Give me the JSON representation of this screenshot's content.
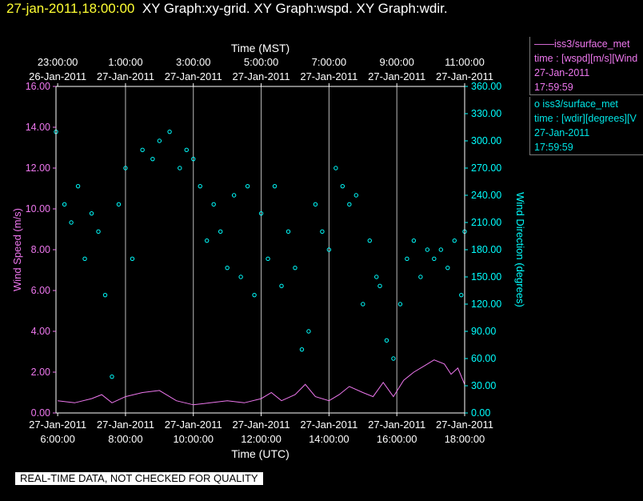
{
  "header": {
    "timestamp": "27-jan-2011,18:00:00",
    "graphs": "XY Graph:xy-grid.  XY Graph:wspd.  XY Graph:wdir."
  },
  "legend": {
    "wspd": {
      "line1": "——iss3/surface_met",
      "line2": "time : [wspd][m/s][Wind",
      "line3": "27-Jan-2011",
      "line4": "17:59:59"
    },
    "wdir": {
      "line1": "o  iss3/surface_met",
      "line2": "time : [wdir][degrees][V",
      "line3": "27-Jan-2011",
      "line4": "17:59:59"
    }
  },
  "notice": "REAL-TIME DATA, NOT CHECKED FOR QUALITY",
  "colors": {
    "wspd": "#ee77ee",
    "wdir": "#00ffff",
    "timestamp": "#ffff33",
    "frame": "#ffffff"
  },
  "chart_data": {
    "type": "line",
    "top_axis": {
      "label": "Time (MST)",
      "times": [
        "23:00:00",
        "1:00:00",
        "3:00:00",
        "5:00:00",
        "7:00:00",
        "9:00:00",
        "11:00:00"
      ],
      "dates": [
        "26-Jan-2011",
        "27-Jan-2011",
        "27-Jan-2011",
        "27-Jan-2011",
        "27-Jan-2011",
        "27-Jan-2011",
        "27-Jan-2011"
      ]
    },
    "bottom_axis": {
      "label": "Time (UTC)",
      "times": [
        "6:00:00",
        "8:00:00",
        "10:00:00",
        "12:00:00",
        "14:00:00",
        "16:00:00",
        "18:00:00"
      ],
      "dates": [
        "27-Jan-2011",
        "27-Jan-2011",
        "27-Jan-2011",
        "27-Jan-2011",
        "27-Jan-2011",
        "27-Jan-2011",
        "27-Jan-2011"
      ]
    },
    "xlim_utc_hours": [
      5.95,
      18.0
    ],
    "left_axis": {
      "label": "Wind Speed (m/s)",
      "ylim": [
        0,
        16
      ],
      "ticks": [
        "0.00",
        "2.00",
        "4.00",
        "6.00",
        "8.00",
        "10.00",
        "12.00",
        "14.00",
        "16.00"
      ]
    },
    "right_axis": {
      "label": "Wind Direction (degrees)",
      "ylim": [
        0,
        360
      ],
      "ticks": [
        "0.00",
        "30.00",
        "60.00",
        "90.00",
        "120.00",
        "150.00",
        "180.00",
        "210.00",
        "240.00",
        "270.00",
        "300.00",
        "330.00",
        "360.00"
      ]
    },
    "vertical_grid_utc_hours": [
      8,
      10,
      12,
      14,
      16,
      18
    ],
    "series": [
      {
        "name": "iss3/surface_met time : [wspd][m/s]",
        "axis": "left",
        "style": "line",
        "x_utc_hours": [
          6.0,
          6.5,
          7.0,
          7.3,
          7.6,
          8.0,
          8.5,
          9.0,
          9.5,
          10.0,
          10.5,
          11.0,
          11.5,
          12.0,
          12.3,
          12.6,
          13.0,
          13.3,
          13.6,
          14.0,
          14.3,
          14.6,
          15.0,
          15.3,
          15.6,
          15.9,
          16.2,
          16.5,
          16.8,
          17.1,
          17.4,
          17.6,
          17.8,
          18.0
        ],
        "y": [
          0.6,
          0.5,
          0.7,
          0.9,
          0.5,
          0.8,
          1.0,
          1.1,
          0.6,
          0.4,
          0.5,
          0.6,
          0.5,
          0.7,
          1.0,
          0.6,
          0.9,
          1.4,
          0.8,
          0.6,
          0.9,
          1.3,
          1.0,
          0.8,
          1.5,
          0.8,
          1.6,
          2.0,
          2.3,
          2.6,
          2.4,
          1.9,
          2.2,
          1.4
        ]
      },
      {
        "name": "iss3/surface_met time : [wdir][degrees]",
        "axis": "right",
        "style": "markers",
        "x_utc_hours": [
          5.95,
          6.2,
          6.4,
          6.6,
          6.8,
          7.0,
          7.2,
          7.4,
          7.6,
          7.8,
          8.0,
          8.2,
          8.5,
          8.8,
          9.0,
          9.3,
          9.6,
          9.8,
          10.0,
          10.2,
          10.4,
          10.6,
          10.8,
          11.0,
          11.2,
          11.4,
          11.6,
          11.8,
          12.0,
          12.2,
          12.4,
          12.6,
          12.8,
          13.0,
          13.2,
          13.4,
          13.6,
          13.8,
          14.0,
          14.2,
          14.4,
          14.6,
          14.8,
          15.0,
          15.2,
          15.4,
          15.5,
          15.7,
          15.9,
          16.1,
          16.3,
          16.5,
          16.7,
          16.9,
          17.1,
          17.3,
          17.5,
          17.7,
          17.9,
          18.0
        ],
        "y": [
          310,
          230,
          210,
          250,
          170,
          220,
          200,
          130,
          40,
          230,
          270,
          170,
          290,
          280,
          300,
          310,
          270,
          290,
          280,
          250,
          190,
          230,
          200,
          160,
          240,
          150,
          250,
          130,
          220,
          170,
          250,
          140,
          200,
          160,
          70,
          90,
          230,
          200,
          180,
          270,
          250,
          230,
          240,
          120,
          190,
          150,
          140,
          80,
          60,
          120,
          170,
          190,
          150,
          180,
          170,
          180,
          160,
          190,
          130,
          200
        ]
      }
    ]
  }
}
